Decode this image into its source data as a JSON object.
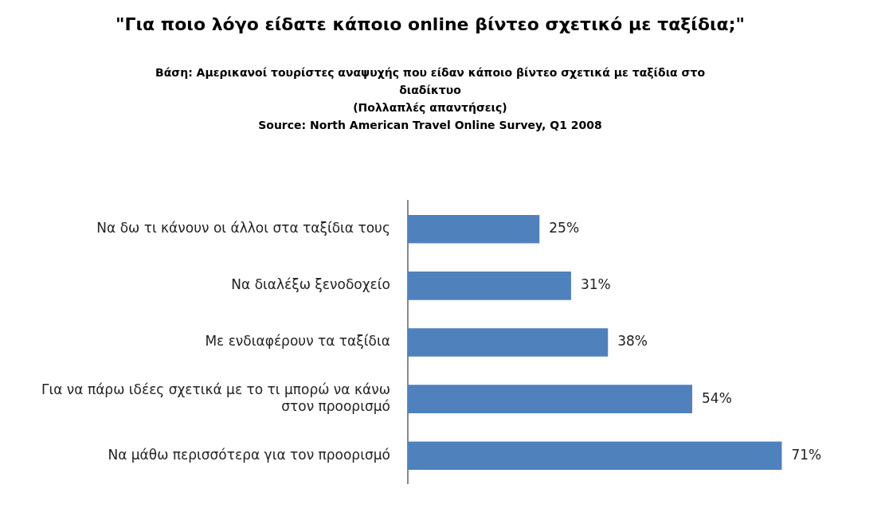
{
  "chart_data": {
    "type": "bar",
    "orientation": "horizontal",
    "title": "\"Για ποιο λόγο είδατε κάποιο online βίντεο σχετικό με ταξίδια;\"",
    "subtitle": "Βάση: Αμερικανοί τουρίστες αναψυχής που είδαν κάποιο βίντεο σχετικά με ταξίδια στο διαδίκτυο",
    "annotations": [
      "(Πολλαπλές απαντήσεις)",
      "Source: North American Travel Online Survey, Q1 2008"
    ],
    "categories": [
      "Να δω τι κάνουν οι άλλοι στα ταξίδια τους",
      "Να διαλέξω ξενοδοχείο",
      "Με ενδιαφέρουν τα ταξίδια",
      "Για να πάρω ιδέες σχετικά με το τι μπορώ να κάνω στον προορισμό",
      "Να μάθω περισσότερα για τον προορισμό"
    ],
    "values": [
      25,
      31,
      38,
      54,
      71
    ],
    "value_labels": [
      "25%",
      "31%",
      "38%",
      "54%",
      "71%"
    ],
    "color": "#4f81bd",
    "legend": false,
    "tick_labels": "y"
  }
}
